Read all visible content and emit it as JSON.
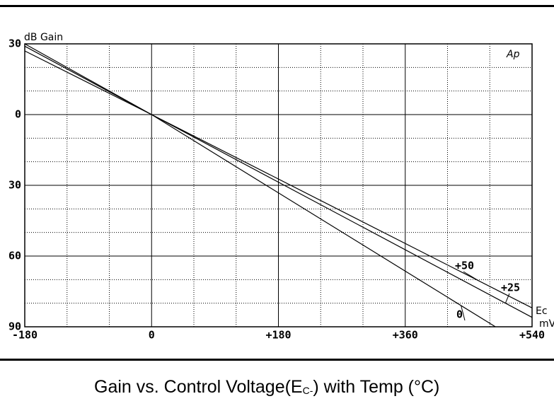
{
  "chart_data": {
    "type": "line",
    "y_label": "dB  Gain",
    "annotation": "Ap",
    "x_label": "Ec",
    "x_unit": "mV",
    "caption": {
      "main": "Gain vs. Control Voltage(E",
      "sub": "C-",
      "end": ") with Temp (°C)"
    },
    "xlim": [
      -180,
      540
    ],
    "xticks": [
      -180,
      0,
      {
        "value": 180,
        "label": "+180"
      },
      {
        "value": 360,
        "label": "+360"
      },
      {
        "value": 540,
        "label": "+540"
      }
    ],
    "ylim": [
      -90,
      30
    ],
    "yticks": [
      {
        "value": -90,
        "label": "90"
      },
      {
        "value": -60,
        "label": "60"
      },
      {
        "value": -30,
        "label": "30"
      },
      0,
      30
    ],
    "grid": true,
    "series": [
      {
        "name": "0",
        "color": "#000000",
        "x": [
          -180,
          0,
          488
        ],
        "values": [
          30,
          0,
          -90
        ]
      },
      {
        "name": "+25",
        "color": "#000000",
        "x": [
          -180,
          0,
          540
        ],
        "values": [
          29,
          0,
          -86
        ]
      },
      {
        "name": "+50",
        "color": "#000000",
        "x": [
          -180,
          0,
          540
        ],
        "values": [
          27,
          0,
          -82
        ]
      }
    ]
  }
}
